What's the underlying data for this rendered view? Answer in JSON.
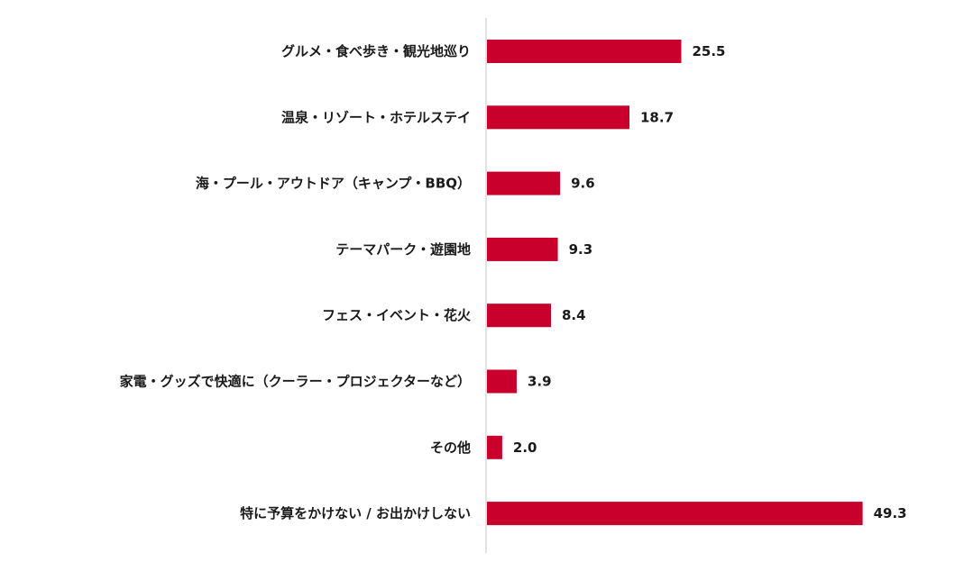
{
  "chart_data": {
    "type": "bar",
    "orientation": "horizontal",
    "categories": [
      "グルメ・食べ歩き・観光地巡り",
      "温泉・リゾート・ホテルステイ",
      "海・プール・アウトドア（キャンプ・BBQ）",
      "テーマパーク・遊園地",
      "フェス・イベント・花火",
      "家電・グッズで快適に（クーラー・プロジェクターなど）",
      "その他",
      "特に予算をかけない / お出かけしない"
    ],
    "values": [
      25.5,
      18.7,
      9.6,
      9.3,
      8.4,
      3.9,
      2.0,
      49.3
    ],
    "value_labels": [
      "25.5",
      "18.7",
      "9.6",
      "9.3",
      "8.4",
      "3.9",
      "2.0",
      "49.3"
    ],
    "xlim": [
      0,
      50
    ],
    "bar_color": "#c8002b",
    "axis_color": "#d9d9d9",
    "text_color": "#1a1a1a",
    "grid": false,
    "legend": "none"
  }
}
